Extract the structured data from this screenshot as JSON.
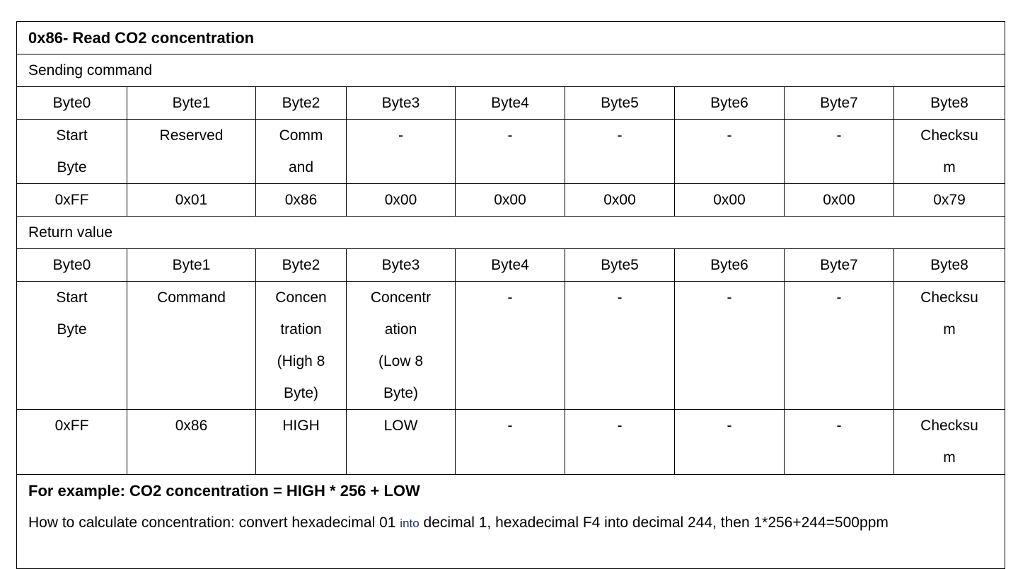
{
  "title": "0x86- Read CO2 concentration",
  "sending": {
    "label": "Sending command",
    "headers": [
      "Byte0",
      "Byte1",
      "Byte2",
      "Byte3",
      "Byte4",
      "Byte5",
      "Byte6",
      "Byte7",
      "Byte8"
    ],
    "descriptions": [
      [
        "Start",
        "Byte"
      ],
      [
        "Reserved"
      ],
      [
        "Comm",
        "and"
      ],
      [
        "-"
      ],
      [
        "-"
      ],
      [
        "-"
      ],
      [
        "-"
      ],
      [
        "-"
      ],
      [
        "Checksu",
        "m"
      ]
    ],
    "values": [
      [
        "0xFF"
      ],
      [
        "0x01"
      ],
      [
        "0x86"
      ],
      [
        "0x00"
      ],
      [
        "0x00"
      ],
      [
        "0x00"
      ],
      [
        "0x00"
      ],
      [
        "0x00"
      ],
      [
        "0x79"
      ]
    ]
  },
  "returning": {
    "label": "Return value",
    "headers": [
      "Byte0",
      "Byte1",
      "Byte2",
      "Byte3",
      "Byte4",
      "Byte5",
      "Byte6",
      "Byte7",
      "Byte8"
    ],
    "descriptions": [
      [
        "Start",
        "Byte"
      ],
      [
        "Command"
      ],
      [
        "Concen",
        "tration",
        "(High 8",
        "Byte)"
      ],
      [
        "Concentr",
        "ation",
        "(Low 8",
        "Byte)"
      ],
      [
        "-"
      ],
      [
        "-"
      ],
      [
        "-"
      ],
      [
        "-"
      ],
      [
        "Checksu",
        "m"
      ]
    ],
    "values": [
      [
        "0xFF"
      ],
      [
        "0x86"
      ],
      [
        "HIGH"
      ],
      [
        "LOW"
      ],
      [
        "-"
      ],
      [
        "-"
      ],
      [
        "-"
      ],
      [
        "-"
      ],
      [
        "Checksu",
        "m"
      ]
    ]
  },
  "example": {
    "formula": "For example: CO2 concentration = HIGH * 256 + LOW",
    "text_before": "How to calculate concentration: convert hexadecimal 01 ",
    "text_into": "into",
    "text_after": " decimal 1, hexadecimal F4 into decimal 244, then 1*256+244=500ppm"
  }
}
